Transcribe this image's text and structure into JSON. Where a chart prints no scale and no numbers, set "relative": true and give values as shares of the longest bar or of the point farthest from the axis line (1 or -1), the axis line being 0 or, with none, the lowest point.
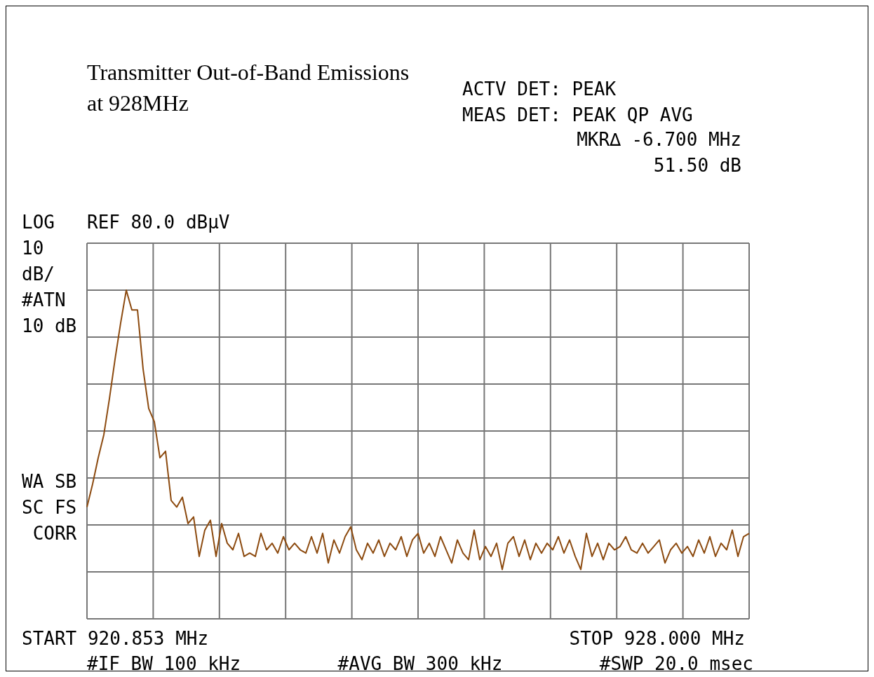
{
  "chart_data": {
    "type": "line",
    "relative": true,
    "title": "Transmitter Out-of-Band Emissions at 928MHz",
    "annotations": [
      "ACTV DET: PEAK",
      "MEAS DET: PEAK QP AVG",
      "MKR∆ -6.700 MHz",
      "51.50 dB",
      "LOG",
      "10",
      "dB/",
      "#ATN",
      "10 dB",
      "WA SB",
      "SC FS",
      "CORR",
      "#IF BW 100 kHz",
      "#AVG BW 300 kHz",
      "#SWP 20.0 msec",
      "REF 80.0 dBµV",
      "START 920.853 MHz",
      "STOP 928.000 MHz"
    ],
    "categories": [
      null,
      null,
      null,
      null,
      null,
      null,
      null,
      null,
      null,
      null,
      null,
      null,
      null,
      null,
      null,
      null,
      null,
      null,
      null,
      null,
      null,
      null,
      null,
      null,
      null,
      null,
      null,
      null,
      null,
      null,
      null,
      null,
      null,
      null,
      null,
      null,
      null,
      null,
      null,
      null,
      null,
      null,
      null,
      null,
      null,
      null,
      null,
      null,
      null,
      null,
      null,
      null,
      null,
      null,
      null,
      null,
      null,
      null,
      null,
      null,
      null,
      null,
      null,
      null,
      null,
      null,
      null,
      null,
      null,
      null,
      null,
      null,
      null,
      null,
      null,
      null,
      null,
      null,
      null,
      null,
      null,
      null,
      null,
      null,
      null,
      null,
      null,
      null,
      null,
      null,
      null,
      null,
      null,
      null,
      null,
      null,
      null,
      null,
      null,
      null,
      null,
      null,
      null,
      null,
      null,
      null,
      null,
      null,
      null,
      null,
      null,
      null,
      null,
      null,
      null,
      null,
      null,
      null,
      null
    ],
    "grid": true,
    "legend": false,
    "marker": "none",
    "line_style": "solid",
    "series": [
      {
        "color": "#8c4a0f",
        "values": [
          0.34,
          0.41,
          0.49,
          0.56,
          0.67,
          0.79,
          0.9,
          1,
          0.94,
          0.94,
          0.76,
          0.64,
          0.6,
          0.49,
          0.51,
          0.36,
          0.34,
          0.37,
          0.29,
          0.31,
          0.19,
          0.27,
          0.3,
          0.19,
          0.29,
          0.23,
          0.21,
          0.26,
          0.19,
          0.2,
          0.19,
          0.26,
          0.21,
          0.23,
          0.2,
          0.25,
          0.21,
          0.23,
          0.21,
          0.2,
          0.25,
          0.2,
          0.26,
          0.17,
          0.24,
          0.2,
          0.25,
          0.28,
          0.21,
          0.18,
          0.23,
          0.2,
          0.24,
          0.19,
          0.23,
          0.21,
          0.25,
          0.19,
          0.24,
          0.26,
          0.2,
          0.23,
          0.19,
          0.25,
          0.21,
          0.17,
          0.24,
          0.2,
          0.18,
          0.27,
          0.18,
          0.22,
          0.19,
          0.23,
          0.15,
          0.23,
          0.25,
          0.19,
          0.24,
          0.18,
          0.23,
          0.2,
          0.23,
          0.21,
          0.25,
          0.2,
          0.24,
          0.19,
          0.15,
          0.26,
          0.19,
          0.23,
          0.18,
          0.23,
          0.21,
          0.22,
          0.25,
          0.21,
          0.2,
          0.23,
          0.2,
          0.22,
          0.24,
          0.17,
          0.21,
          0.23,
          0.2,
          0.22,
          0.19,
          0.24,
          0.2,
          0.25,
          0.19,
          0.23,
          0.21,
          0.27,
          0.19,
          0.25,
          0.26
        ]
      }
    ]
  }
}
